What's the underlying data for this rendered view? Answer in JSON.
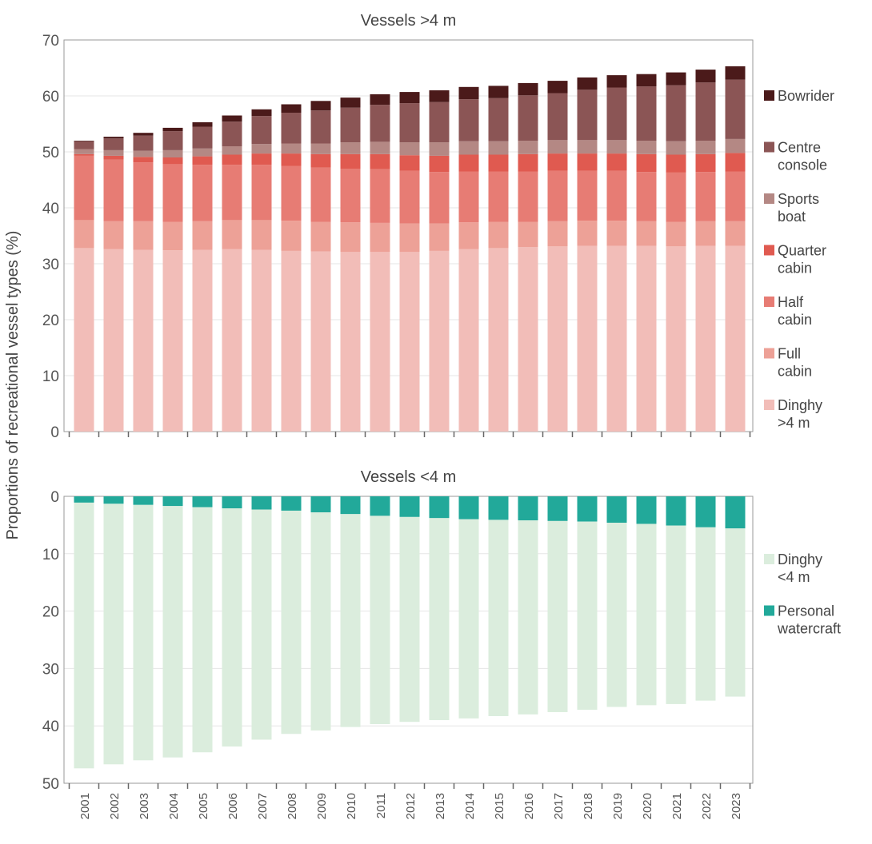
{
  "chart_data": [
    {
      "type": "bar",
      "stacked": true,
      "title": "Vessels >4 m",
      "ylabel": "Proportions of recreational vessel types (%)",
      "ylim": [
        0,
        70
      ],
      "yticks": [
        0,
        10,
        20,
        30,
        40,
        50,
        60,
        70
      ],
      "grid": true,
      "categories": [
        "2001",
        "2002",
        "2003",
        "2004",
        "2005",
        "2006",
        "2007",
        "2008",
        "2009",
        "2010",
        "2011",
        "2012",
        "2013",
        "2014",
        "2015",
        "2016",
        "2017",
        "2018",
        "2019",
        "2020",
        "2021",
        "2022",
        "2023"
      ],
      "series": [
        {
          "name": "Dinghy >4 m",
          "legend": [
            "Dinghy",
            ">4 m"
          ],
          "color": "#f2bdb8",
          "values": [
            32.8,
            32.6,
            32.5,
            32.4,
            32.5,
            32.6,
            32.5,
            32.3,
            32.2,
            32.1,
            32.1,
            32.1,
            32.3,
            32.6,
            32.8,
            33.0,
            33.1,
            33.2,
            33.2,
            33.2,
            33.1,
            33.2,
            33.2
          ]
        },
        {
          "name": "Full cabin",
          "legend": [
            "Full",
            "cabin"
          ],
          "color": "#eda197",
          "values": [
            5.0,
            5.0,
            5.1,
            5.1,
            5.1,
            5.2,
            5.3,
            5.4,
            5.3,
            5.3,
            5.2,
            5.1,
            4.9,
            4.8,
            4.7,
            4.5,
            4.5,
            4.5,
            4.5,
            4.4,
            4.4,
            4.4,
            4.4
          ]
        },
        {
          "name": "Half cabin",
          "legend": [
            "Half",
            "cabin"
          ],
          "color": "#e77c74",
          "values": [
            11.5,
            11.0,
            10.5,
            10.3,
            10.1,
            9.9,
            9.9,
            9.8,
            9.7,
            9.6,
            9.6,
            9.4,
            9.2,
            9.1,
            9.0,
            9.0,
            9.0,
            8.9,
            8.9,
            8.8,
            8.8,
            8.8,
            8.9
          ]
        },
        {
          "name": "Quarter cabin",
          "legend": [
            "Quarter",
            "cabin"
          ],
          "color": "#e05a50",
          "values": [
            0.3,
            0.7,
            1.0,
            1.2,
            1.5,
            1.8,
            2.0,
            2.2,
            2.4,
            2.6,
            2.7,
            2.8,
            2.9,
            3.0,
            3.0,
            3.1,
            3.1,
            3.1,
            3.1,
            3.2,
            3.2,
            3.2,
            3.3
          ]
        },
        {
          "name": "Sports boat",
          "legend": [
            "Sports",
            "boat"
          ],
          "color": "#b48884",
          "values": [
            0.9,
            1.0,
            1.1,
            1.3,
            1.4,
            1.5,
            1.7,
            1.8,
            1.9,
            2.1,
            2.2,
            2.3,
            2.4,
            2.4,
            2.4,
            2.4,
            2.4,
            2.4,
            2.4,
            2.4,
            2.4,
            2.4,
            2.5
          ]
        },
        {
          "name": "Centre console",
          "legend": [
            "Centre",
            "console"
          ],
          "color": "#8b5555",
          "values": [
            1.4,
            2.1,
            2.7,
            3.4,
            3.9,
            4.4,
            5.0,
            5.5,
            5.9,
            6.2,
            6.6,
            7.0,
            7.2,
            7.5,
            7.7,
            8.1,
            8.4,
            9.0,
            9.4,
            9.7,
            10.0,
            10.4,
            10.6
          ]
        },
        {
          "name": "Bowrider",
          "legend": [
            "Bowrider"
          ],
          "color": "#4b1a1a",
          "values": [
            0.1,
            0.3,
            0.5,
            0.6,
            0.8,
            1.1,
            1.2,
            1.5,
            1.7,
            1.8,
            1.9,
            2.0,
            2.1,
            2.2,
            2.2,
            2.2,
            2.2,
            2.2,
            2.2,
            2.2,
            2.3,
            2.3,
            2.4
          ]
        }
      ]
    },
    {
      "type": "bar",
      "stacked": true,
      "inverted_y": true,
      "title": "Vessels <4 m",
      "ylim": [
        0,
        50
      ],
      "yticks": [
        0,
        10,
        20,
        30,
        40,
        50
      ],
      "grid": true,
      "categories": [
        "2001",
        "2002",
        "2003",
        "2004",
        "2005",
        "2006",
        "2007",
        "2008",
        "2009",
        "2010",
        "2011",
        "2012",
        "2013",
        "2014",
        "2015",
        "2016",
        "2017",
        "2018",
        "2019",
        "2020",
        "2021",
        "2022",
        "2023"
      ],
      "series": [
        {
          "name": "Personal watercraft",
          "legend": [
            "Personal",
            "watercraft"
          ],
          "color": "#22a99a",
          "values": [
            1.1,
            1.3,
            1.5,
            1.7,
            1.9,
            2.1,
            2.3,
            2.5,
            2.8,
            3.1,
            3.4,
            3.6,
            3.8,
            4.0,
            4.1,
            4.2,
            4.3,
            4.4,
            4.6,
            4.8,
            5.1,
            5.4,
            5.6
          ]
        },
        {
          "name": "Dinghy <4 m",
          "legend": [
            "Dinghy",
            "<4 m"
          ],
          "color": "#dbeddd",
          "values": [
            46.3,
            45.4,
            44.5,
            43.8,
            42.7,
            41.5,
            40.1,
            38.9,
            38.0,
            37.1,
            36.3,
            35.7,
            35.2,
            34.7,
            34.2,
            33.8,
            33.3,
            32.8,
            32.1,
            31.6,
            31.1,
            30.2,
            29.3
          ]
        }
      ]
    }
  ]
}
